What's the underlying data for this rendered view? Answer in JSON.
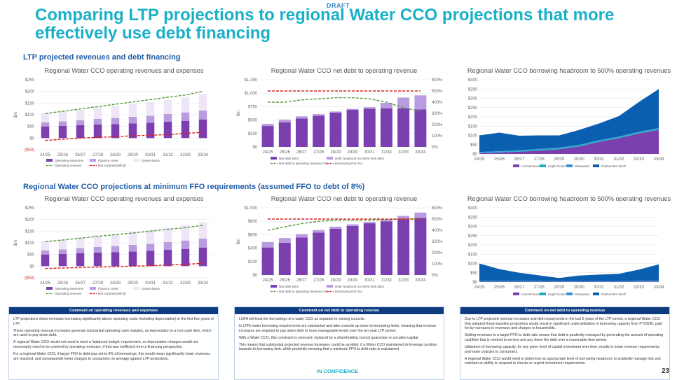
{
  "header": {
    "draft_label": "DRAFT",
    "title": "Comparing LTP projections to regional Water CCO projections that more effectively use debt financing",
    "section1": "LTP projected revenues and debt financing",
    "section2": "Regional Water CCO projections at minimum FFO requirements (assumed FFO to debt of 8%)"
  },
  "colors": {
    "title": "#1ab0c8",
    "section": "#1f5ea8",
    "purple_dark": "#7b3fb0",
    "purple_mid": "#b99be0",
    "purple_light": "#eee6f7",
    "green_dash": "#5a9a3c",
    "red_dash": "#d42020",
    "blue_dark": "#0b5fb0",
    "teal": "#19b0c0",
    "header_bar": "#0d3c80"
  },
  "chart_data": [
    {
      "type": "bar",
      "title": "Regional Water CCO operating revenues and expenses",
      "categories": [
        "24/25",
        "25/26",
        "26/27",
        "27/28",
        "28/29",
        "29/30",
        "30/31",
        "31/32",
        "32/33",
        "33/34"
      ],
      "ylabel": "$m",
      "ylim": [
        -50,
        250
      ],
      "yticks": [
        "($50)",
        "$0",
        "$50",
        "$100",
        "$150",
        "$200",
        "$250"
      ],
      "stacked": true,
      "series": [
        {
          "name": "Operating expenses",
          "kind": "bar",
          "color": "#7b3fb0",
          "values": [
            50,
            52,
            55,
            58,
            60,
            63,
            66,
            70,
            74,
            80
          ]
        },
        {
          "name": "Finance costs",
          "kind": "bar",
          "color": "#b99be0",
          "values": [
            18,
            20,
            22,
            24,
            26,
            28,
            30,
            33,
            36,
            38
          ]
        },
        {
          "name": "Depreciation",
          "kind": "bar",
          "color": "#eee6f7",
          "values": [
            40,
            42,
            45,
            50,
            52,
            55,
            58,
            62,
            66,
            70
          ]
        },
        {
          "name": "Operating revenue",
          "kind": "line",
          "color": "#5a9a3c",
          "values": [
            105,
            115,
            125,
            135,
            145,
            155,
            165,
            175,
            185,
            200
          ]
        },
        {
          "name": "Net surplus/(deficit)",
          "kind": "line",
          "color": "#d42020",
          "values": [
            -10,
            -5,
            0,
            3,
            6,
            10,
            12,
            15,
            20,
            25
          ]
        }
      ]
    },
    {
      "type": "bar",
      "title": "Regional Water CCO net debt to operating revenue",
      "categories": [
        "24/25",
        "25/26",
        "26/27",
        "27/28",
        "28/29",
        "29/30",
        "30/31",
        "31/32",
        "32/33",
        "33/34"
      ],
      "ylabel": "$m",
      "ylim": [
        0,
        1250
      ],
      "yticks": [
        "$0",
        "$250",
        "$500",
        "$750",
        "$1,000",
        "$1,250"
      ],
      "y2lim": [
        0,
        600
      ],
      "y2ticks": [
        "0%",
        "100%",
        "200%",
        "300%",
        "400%",
        "500%",
        "600%"
      ],
      "series": [
        {
          "name": "Net debt ($m)",
          "kind": "bar",
          "color": "#7b3fb0",
          "values": [
            390,
            460,
            530,
            580,
            640,
            690,
            710,
            720,
            720,
            700
          ]
        },
        {
          "name": "Debt headroom to 500% limit ($m)",
          "kind": "bar",
          "color": "#b99be0",
          "stack_on": 0,
          "values": [
            40,
            50,
            40,
            30,
            20,
            20,
            30,
            100,
            200,
            260
          ]
        },
        {
          "name": "Net debt to operating revenue (%)",
          "kind": "line",
          "axis": "y2",
          "color": "#5a9a3c",
          "values": [
            400,
            400,
            420,
            430,
            440,
            440,
            430,
            400,
            350,
            320
          ]
        },
        {
          "name": "Borrowing limit (%)",
          "kind": "line",
          "axis": "y2",
          "color": "#d42020",
          "values": [
            500,
            500,
            500,
            500,
            500,
            500,
            500,
            500,
            500,
            500
          ]
        }
      ]
    },
    {
      "type": "area",
      "title": "Regional Water CCO borrowing headroom to 500% operating revenues",
      "categories": [
        "24/25",
        "25/26",
        "26/27",
        "27/28",
        "28/29",
        "29/30",
        "30/31",
        "31/32",
        "32/33",
        "33/34"
      ],
      "ylim": [
        0,
        400
      ],
      "yticks": [
        "$0",
        "$50",
        "$100",
        "$150",
        "$200",
        "$250",
        "$300",
        "$350",
        "$400"
      ],
      "stacked": true,
      "series": [
        {
          "name": "Horowhenua",
          "color": "#7b3fb0",
          "values": [
            5,
            8,
            12,
            18,
            25,
            40,
            65,
            85,
            110,
            130
          ]
        },
        {
          "name": "Kapiti Coast",
          "color": "#19b0c0",
          "values": [
            3,
            4,
            5,
            6,
            6,
            6,
            6,
            6,
            6,
            6
          ]
        },
        {
          "name": "Manawatu",
          "color": "#3a8fd8",
          "values": [
            2,
            3,
            3,
            3,
            3,
            3,
            3,
            3,
            4,
            4
          ]
        },
        {
          "name": "Palmerston North",
          "color": "#0b5fb0",
          "values": [
            90,
            100,
            78,
            73,
            66,
            80,
            90,
            110,
            160,
            210
          ]
        }
      ]
    },
    {
      "type": "bar",
      "title": "Regional Water CCO operating revenues and expenses",
      "categories": [
        "24/25",
        "25/26",
        "26/27",
        "27/28",
        "28/29",
        "29/30",
        "30/31",
        "31/32",
        "32/33",
        "33/34"
      ],
      "ylabel": "$m",
      "ylim": [
        -50,
        250
      ],
      "yticks": [
        "($50)",
        "$0",
        "$50",
        "$100",
        "$150",
        "$200",
        "$250"
      ],
      "stacked": true,
      "series": [
        {
          "name": "Operating expenses",
          "kind": "bar",
          "color": "#7b3fb0",
          "values": [
            50,
            52,
            55,
            58,
            60,
            63,
            66,
            70,
            74,
            80
          ]
        },
        {
          "name": "Finance costs",
          "kind": "bar",
          "color": "#b99be0",
          "values": [
            18,
            20,
            22,
            24,
            26,
            28,
            30,
            33,
            36,
            38
          ]
        },
        {
          "name": "Depreciation",
          "kind": "bar",
          "color": "#eee6f7",
          "values": [
            40,
            42,
            45,
            50,
            52,
            55,
            58,
            62,
            66,
            70
          ]
        },
        {
          "name": "Operating revenue",
          "kind": "line",
          "color": "#5a9a3c",
          "values": [
            105,
            112,
            120,
            128,
            135,
            142,
            150,
            158,
            165,
            175
          ]
        },
        {
          "name": "Net surplus/(deficit)",
          "kind": "line",
          "color": "#d42020",
          "values": [
            -10,
            -8,
            -6,
            -4,
            -2,
            0,
            2,
            5,
            8,
            12
          ]
        }
      ]
    },
    {
      "type": "bar",
      "title": "Regional Water CCO net debt to operating revenue",
      "categories": [
        "24/25",
        "25/26",
        "26/27",
        "27/28",
        "28/29",
        "29/30",
        "30/31",
        "31/32",
        "32/33",
        "33/34"
      ],
      "ylabel": "$m",
      "ylim": [
        0,
        1000
      ],
      "yticks": [
        "$0",
        "$200",
        "$400",
        "$600",
        "$800",
        "$1,000"
      ],
      "y2lim": [
        0,
        600
      ],
      "y2ticks": [
        "0%",
        "100%",
        "200%",
        "300%",
        "400%",
        "500%",
        "600%"
      ],
      "series": [
        {
          "name": "Net debt ($m)",
          "kind": "bar",
          "color": "#7b3fb0",
          "values": [
            410,
            480,
            560,
            630,
            690,
            730,
            770,
            800,
            830,
            850
          ]
        },
        {
          "name": "Debt headroom to 500% limit ($m)",
          "kind": "bar",
          "color": "#b99be0",
          "stack_on": 0,
          "values": [
            80,
            70,
            50,
            40,
            30,
            25,
            20,
            20,
            50,
            80
          ]
        },
        {
          "name": "Net debt to operating revenue (%)",
          "kind": "line",
          "axis": "y2",
          "color": "#5a9a3c",
          "values": [
            400,
            430,
            460,
            480,
            490,
            490,
            490,
            495,
            500,
            500
          ]
        },
        {
          "name": "Borrowing limit (%)",
          "kind": "line",
          "axis": "y2",
          "color": "#d42020",
          "values": [
            500,
            500,
            500,
            500,
            500,
            500,
            500,
            500,
            500,
            500
          ]
        }
      ]
    },
    {
      "type": "area",
      "title": "Regional Water CCO borrowing headroom to 500% operating revenues",
      "categories": [
        "24/25",
        "25/26",
        "26/27",
        "27/28",
        "28/29",
        "29/30",
        "30/31",
        "31/32",
        "32/33",
        "33/34"
      ],
      "ylim": [
        0,
        400
      ],
      "yticks": [
        "$0",
        "$50",
        "$100",
        "$150",
        "$200",
        "$250",
        "$300",
        "$350",
        "$400"
      ],
      "stacked": true,
      "series": [
        {
          "name": "Horowhenua",
          "color": "#7b3fb0",
          "values": [
            2,
            2,
            2,
            2,
            2,
            2,
            2,
            2,
            3,
            3
          ]
        },
        {
          "name": "Kapiti Coast",
          "color": "#19b0c0",
          "values": [
            2,
            2,
            2,
            2,
            1,
            1,
            1,
            1,
            2,
            2
          ]
        },
        {
          "name": "Manawatu",
          "color": "#3a8fd8",
          "values": [
            2,
            2,
            2,
            2,
            1,
            1,
            1,
            1,
            2,
            2
          ]
        },
        {
          "name": "Palmerston North",
          "color": "#0b5fb0",
          "values": [
            94,
            64,
            44,
            30,
            18,
            31,
            36,
            40,
            60,
            88
          ]
        }
      ]
    }
  ],
  "comments": [
    {
      "heading": "Comment on operating revenues and expenses",
      "paras": [
        "LTP projections show revenues increasing significantly above operating costs (including depreciation) in the first five years of LTP.",
        "These operating revenue increases generate substantial operating cash margins, as depreciation is a non-cash item, which are used to pay down debt.",
        "A regional Water CCO would not need to meet a 'balanced budget' requirement, so depreciation charges would not necessarily need to be covered by operating revenues, if that was inefficient from a financing perspective.",
        "For a regional Water CCO, if target FFO to debt was set to 8% of borrowings, this would mean significantly lower revenues are required, and consequently lower charges to consumers on average against LTP projections."
      ]
    },
    {
      "heading": "Comment on net debt to operating revenue",
      "paras": [
        "LGFA will treat the borrowings of a water CCO as separate to owning councils.",
        "In LTPs water borrowing requirements are substantial and take councils up close to borrowing limits, meaning that revenue increases are required to pay down debt to more manageable levels over the ten-year LTP period.",
        "With a Water CCO, this constraint is removed, replaced by a shareholding council guarantee or uncalled capital.",
        "This means that substantial projected revenue increases could be avoided, if a Water CCO maintained its leverage position towards its borrowing limit, while prudently ensuring that a minimum FFO to debt ratio is maintained."
      ]
    },
    {
      "heading": "Comment on net debt to operating revenue",
      "paras": [
        "Due to LTP projected revenue increases and debt repayments in the last 5 years of the LTP period, a regional Water CCO that adopted those baseline projections would result in significant underutilisation of borrowing capacity from FY29/30, paid for by increases in revenues and charges to households.",
        "Setting revenues to a target FFO to debt ratio means that debt is prudently managed by generating the amount of operating cashflow that is needed to service and pay down the debt over a reasonable time period.",
        "Utilisation of borrowing capacity, for any given level of capital investment over time, results in lower revenue requirements and lower charges to consumers.",
        "A regional Water CCO would need to determine an appropriate level of borrowing headroom to prudently manage risk and maintain an ability to respond to shocks or urgent investment requirements."
      ]
    }
  ],
  "footer": {
    "confidence": "IN CONFIDENCE",
    "page_number": "23"
  }
}
